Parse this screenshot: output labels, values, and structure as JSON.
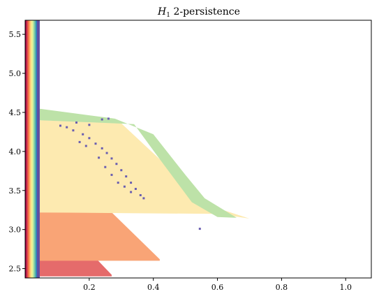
{
  "chart_data": {
    "type": "heatmap",
    "title_main": "H",
    "title_sub": "1",
    "title_rest": " 2-persistence",
    "xlim": [
      0.0,
      1.08
    ],
    "ylim": [
      2.38,
      5.68
    ],
    "x_ticks": [
      {
        "value": 0.2,
        "label": "0.2"
      },
      {
        "value": 0.4,
        "label": "0.4"
      },
      {
        "value": 0.6,
        "label": "0.6"
      },
      {
        "value": 0.8,
        "label": "0.8"
      },
      {
        "value": 1.0,
        "label": "1.0"
      }
    ],
    "y_ticks": [
      {
        "value": 2.5,
        "label": "2.5"
      },
      {
        "value": 3.0,
        "label": "3.0"
      },
      {
        "value": 3.5,
        "label": "3.5"
      },
      {
        "value": 4.0,
        "label": "4.0"
      },
      {
        "value": 4.5,
        "label": "4.5"
      },
      {
        "value": 5.0,
        "label": "5.0"
      },
      {
        "value": 5.5,
        "label": "5.5"
      }
    ],
    "grid": false,
    "colormap": "Spectral",
    "regions": [
      {
        "name": "red",
        "color": "#e56b6b",
        "upper": [
          [
            0.04,
            2.72
          ],
          [
            0.2,
            2.72
          ],
          [
            0.27,
            2.42
          ]
        ],
        "lower": [
          [
            0.04,
            2.4
          ]
        ]
      },
      {
        "name": "orange-dark",
        "color": "#f4825d",
        "upper": [
          [
            0.04,
            3.1
          ],
          [
            0.1,
            2.98
          ]
        ],
        "lower": [
          [
            0.04,
            2.6
          ],
          [
            0.2,
            2.6
          ]
        ]
      },
      {
        "name": "orange",
        "color": "#f9a476",
        "upper": [
          [
            0.04,
            3.22
          ],
          [
            0.27,
            3.22
          ],
          [
            0.42,
            2.62
          ]
        ],
        "lower": [
          [
            0.04,
            2.6
          ]
        ]
      },
      {
        "name": "yellow-orange",
        "color": "#fbd994",
        "upper": [
          [
            0.04,
            4.12
          ],
          [
            0.2,
            3.8
          ],
          [
            0.36,
            3.25
          ]
        ],
        "lower": [
          [
            0.04,
            3.22
          ]
        ]
      },
      {
        "name": "pale-yellow",
        "color": "#fdeab0",
        "upper": [
          [
            0.04,
            4.4
          ],
          [
            0.3,
            4.36
          ],
          [
            0.42,
            3.9
          ],
          [
            0.58,
            3.3
          ],
          [
            0.7,
            3.14
          ]
        ],
        "lower": [
          [
            0.04,
            3.22
          ],
          [
            0.6,
            3.2
          ]
        ]
      },
      {
        "name": "green",
        "color": "#bde2a8",
        "upper": [
          [
            0.04,
            4.55
          ],
          [
            0.28,
            4.42
          ],
          [
            0.4,
            4.22
          ],
          [
            0.5,
            3.7
          ],
          [
            0.56,
            3.4
          ],
          [
            0.66,
            3.15
          ]
        ],
        "lower": [
          [
            0.04,
            4.4
          ],
          [
            0.34,
            4.35
          ],
          [
            0.42,
            3.9
          ],
          [
            0.52,
            3.35
          ],
          [
            0.6,
            3.16
          ]
        ]
      }
    ],
    "vertical_band": {
      "x_start": 0.0,
      "x_end": 0.045,
      "colors": [
        "#9e0142",
        "#d53e4f",
        "#f46d43",
        "#fdae61",
        "#fee08b",
        "#e6f598",
        "#abdda4",
        "#66c2a5",
        "#3288bd",
        "#5e4fa2",
        "#5e4fa2"
      ],
      "top_value": 5.68
    },
    "scatter": {
      "color": "#6a5eb0",
      "points": [
        [
          0.11,
          4.33
        ],
        [
          0.13,
          4.31
        ],
        [
          0.15,
          4.27
        ],
        [
          0.18,
          4.22
        ],
        [
          0.2,
          4.17
        ],
        [
          0.22,
          4.1
        ],
        [
          0.24,
          4.04
        ],
        [
          0.255,
          3.98
        ],
        [
          0.27,
          3.91
        ],
        [
          0.285,
          3.84
        ],
        [
          0.3,
          3.76
        ],
        [
          0.315,
          3.68
        ],
        [
          0.33,
          3.6
        ],
        [
          0.345,
          3.52
        ],
        [
          0.36,
          3.44
        ],
        [
          0.17,
          4.12
        ],
        [
          0.19,
          4.07
        ],
        [
          0.23,
          3.92
        ],
        [
          0.25,
          3.8
        ],
        [
          0.27,
          3.7
        ],
        [
          0.29,
          3.6
        ],
        [
          0.31,
          3.55
        ],
        [
          0.33,
          3.48
        ],
        [
          0.37,
          3.4
        ],
        [
          0.16,
          4.37
        ],
        [
          0.2,
          4.34
        ],
        [
          0.24,
          4.41
        ],
        [
          0.26,
          4.42
        ],
        [
          0.545,
          3.01
        ]
      ]
    }
  }
}
